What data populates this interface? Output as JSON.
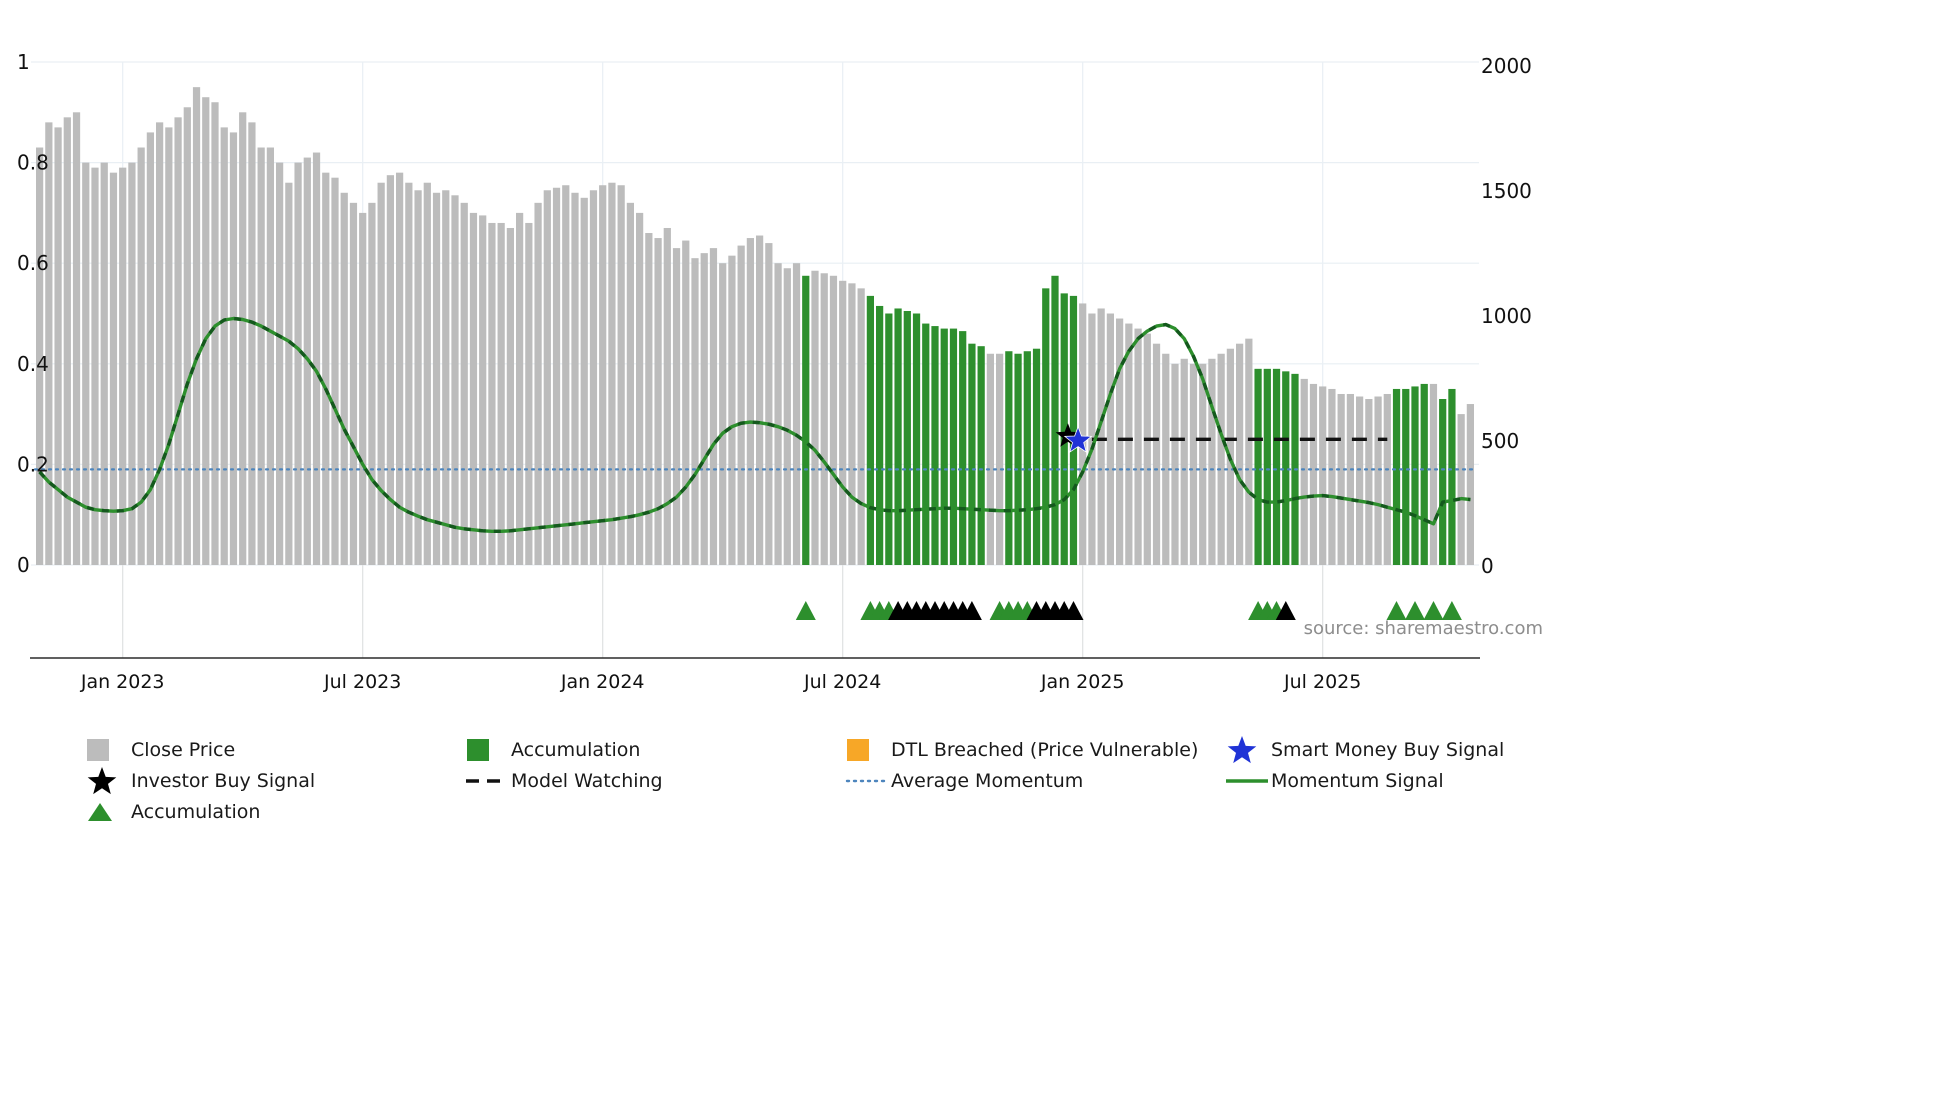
{
  "source_note": "source: sharemaestro.com",
  "colors": {
    "close_bar": "#bcbcbc",
    "accumulation_bar": "#2d8f2d",
    "momentum_line": "#2d8f2d",
    "momentum_dash": "#14591d",
    "average_momentum": "#4d85bd",
    "model_watching": "#111111",
    "dtl_breached": "#f7a727",
    "smart_money_star": "#2033d6",
    "investor_star": "#000000",
    "grid": "#e9eff4",
    "strip_grid": "#e0e0e0",
    "axis": "#2b2b2b",
    "tick_label": "#111111",
    "source": "#8d8d8d"
  },
  "axes": {
    "left_ylim": [
      0,
      1
    ],
    "right_ylim": [
      0,
      2000
    ],
    "left_tick_values": [
      0,
      0.2,
      0.4,
      0.6,
      0.8,
      1
    ],
    "left_tick_labels": [
      "0",
      "0.2",
      "0.4",
      "0.6",
      "0.8",
      "1"
    ],
    "right_tick_values": [
      0,
      500,
      1000,
      1500,
      2000
    ],
    "right_tick_labels": [
      "0",
      "500",
      "1000",
      "1500",
      "2000"
    ],
    "x_tick_indices": [
      9,
      35,
      61,
      87,
      113,
      139
    ],
    "x_tick_labels": [
      "Jan 2023",
      "Jul 2023",
      "Jan 2024",
      "Jul 2024",
      "Jan 2025",
      "Jul 2025"
    ]
  },
  "chart_data": {
    "type": "bar+line",
    "frequency": "weekly",
    "bars": {
      "name": "Close Price (normalised, left axis)",
      "values": [
        0.83,
        0.88,
        0.87,
        0.89,
        0.9,
        0.8,
        0.79,
        0.8,
        0.78,
        0.79,
        0.8,
        0.83,
        0.86,
        0.88,
        0.87,
        0.89,
        0.91,
        0.95,
        0.93,
        0.92,
        0.87,
        0.86,
        0.9,
        0.88,
        0.83,
        0.83,
        0.8,
        0.76,
        0.8,
        0.81,
        0.82,
        0.78,
        0.77,
        0.74,
        0.72,
        0.7,
        0.72,
        0.76,
        0.775,
        0.78,
        0.76,
        0.745,
        0.76,
        0.74,
        0.745,
        0.735,
        0.72,
        0.7,
        0.695,
        0.68,
        0.68,
        0.67,
        0.7,
        0.68,
        0.72,
        0.745,
        0.75,
        0.755,
        0.74,
        0.73,
        0.745,
        0.755,
        0.76,
        0.755,
        0.72,
        0.7,
        0.66,
        0.65,
        0.67,
        0.63,
        0.645,
        0.61,
        0.62,
        0.63,
        0.6,
        0.615,
        0.635,
        0.65,
        0.655,
        0.64,
        0.6,
        0.59,
        0.6,
        0.575,
        0.585,
        0.58,
        0.575,
        0.565,
        0.56,
        0.55,
        0.535,
        0.515,
        0.5,
        0.51,
        0.505,
        0.5,
        0.48,
        0.475,
        0.47,
        0.47,
        0.465,
        0.44,
        0.435,
        0.42,
        0.42,
        0.425,
        0.42,
        0.425,
        0.43,
        0.55,
        0.575,
        0.54,
        0.535,
        0.52,
        0.5,
        0.51,
        0.5,
        0.49,
        0.48,
        0.47,
        0.46,
        0.44,
        0.42,
        0.4,
        0.41,
        0.4,
        0.4,
        0.41,
        0.42,
        0.43,
        0.44,
        0.45,
        0.39,
        0.39,
        0.39,
        0.385,
        0.38,
        0.37,
        0.36,
        0.355,
        0.35,
        0.34,
        0.34,
        0.335,
        0.33,
        0.335,
        0.34,
        0.35,
        0.35,
        0.355,
        0.36,
        0.36,
        0.33,
        0.35,
        0.3,
        0.32
      ],
      "accumulation_indices": [
        83,
        90,
        91,
        92,
        93,
        94,
        95,
        96,
        97,
        98,
        99,
        100,
        101,
        102,
        105,
        106,
        107,
        108,
        109,
        110,
        111,
        112,
        132,
        133,
        134,
        135,
        136,
        147,
        148,
        149,
        150,
        152,
        153
      ]
    },
    "momentum": {
      "name": "Momentum Signal (left axis)",
      "values": [
        0.185,
        0.165,
        0.15,
        0.135,
        0.125,
        0.115,
        0.11,
        0.108,
        0.107,
        0.108,
        0.112,
        0.125,
        0.15,
        0.19,
        0.24,
        0.3,
        0.36,
        0.41,
        0.45,
        0.475,
        0.487,
        0.49,
        0.488,
        0.483,
        0.475,
        0.465,
        0.455,
        0.445,
        0.43,
        0.41,
        0.385,
        0.35,
        0.31,
        0.27,
        0.235,
        0.2,
        0.17,
        0.148,
        0.13,
        0.115,
        0.105,
        0.097,
        0.09,
        0.085,
        0.08,
        0.075,
        0.072,
        0.07,
        0.068,
        0.067,
        0.067,
        0.068,
        0.07,
        0.072,
        0.074,
        0.076,
        0.078,
        0.08,
        0.082,
        0.084,
        0.086,
        0.088,
        0.09,
        0.093,
        0.096,
        0.1,
        0.105,
        0.112,
        0.122,
        0.135,
        0.155,
        0.18,
        0.21,
        0.24,
        0.262,
        0.275,
        0.282,
        0.284,
        0.283,
        0.28,
        0.275,
        0.268,
        0.258,
        0.245,
        0.228,
        0.205,
        0.18,
        0.155,
        0.135,
        0.122,
        0.114,
        0.11,
        0.108,
        0.108,
        0.109,
        0.11,
        0.111,
        0.112,
        0.113,
        0.113,
        0.112,
        0.111,
        0.11,
        0.109,
        0.108,
        0.108,
        0.109,
        0.11,
        0.112,
        0.115,
        0.12,
        0.13,
        0.15,
        0.185,
        0.23,
        0.285,
        0.34,
        0.39,
        0.425,
        0.45,
        0.465,
        0.475,
        0.478,
        0.47,
        0.45,
        0.415,
        0.37,
        0.315,
        0.26,
        0.21,
        0.17,
        0.145,
        0.13,
        0.125,
        0.125,
        0.128,
        0.132,
        0.135,
        0.137,
        0.138,
        0.136,
        0.133,
        0.13,
        0.127,
        0.124,
        0.12,
        0.115,
        0.11,
        0.105,
        0.098,
        0.09,
        0.082,
        0.125,
        0.128,
        0.132,
        0.13
      ]
    },
    "average_momentum": {
      "value": 0.19
    },
    "model_watching": {
      "value": 0.25,
      "start_index": 114,
      "end_index": 146
    },
    "markers": {
      "accumulation_triangle_indices": [
        83,
        90,
        91,
        92,
        104,
        105,
        106,
        107,
        132,
        133,
        134,
        147,
        149,
        151,
        153
      ],
      "investor_triangle_indices": [
        93,
        94,
        95,
        96,
        97,
        98,
        99,
        100,
        101,
        108,
        109,
        110,
        111,
        112,
        135
      ],
      "investor_star": {
        "index": 111.4,
        "value": 0.256
      },
      "smart_money_star": {
        "index": 112.5,
        "value": 0.247
      }
    }
  },
  "legend": {
    "columns": [
      [
        {
          "marker": "square",
          "color_key": "close_bar",
          "label": "Close Price"
        },
        {
          "marker": "star",
          "color_key": "investor_star",
          "label": "Investor Buy Signal"
        },
        {
          "marker": "triangle",
          "color_key": "accumulation_bar",
          "label": "Accumulation"
        }
      ],
      [
        {
          "marker": "square",
          "color_key": "accumulation_bar",
          "label": "Accumulation"
        },
        {
          "marker": "dashed-line",
          "color_key": "model_watching",
          "label": "Model Watching"
        }
      ],
      [
        {
          "marker": "square",
          "color_key": "dtl_breached",
          "label": "DTL Breached (Price Vulnerable)"
        },
        {
          "marker": "dotted-line",
          "color_key": "average_momentum",
          "label": "Average Momentum"
        }
      ],
      [
        {
          "marker": "star",
          "color_key": "smart_money_star",
          "label": "Smart Money Buy Signal"
        },
        {
          "marker": "solid-line",
          "color_key": "momentum_line",
          "label": "Momentum Signal"
        }
      ]
    ]
  }
}
